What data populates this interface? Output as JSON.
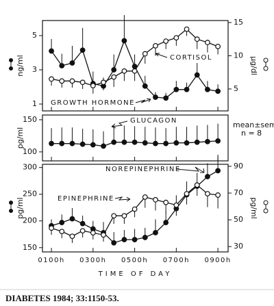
{
  "chart_data": [
    {
      "type": "line",
      "ylabel": "ng/ml",
      "y2label": "μg/dl",
      "x": [
        1,
        1.5,
        2,
        2.5,
        3,
        3.5,
        4,
        4.5,
        5,
        5.5,
        6,
        6.5,
        7,
        7.5,
        8,
        8.5,
        9
      ],
      "xlim": [
        0.57,
        9.49
      ],
      "ylim": [
        0.6,
        5.88
      ],
      "yticks": [
        1,
        3,
        5
      ],
      "y2lim": [
        1.7,
        15.3
      ],
      "y2ticks": [
        5,
        10,
        15
      ],
      "series": [
        {
          "name": "GROWTH HORMONE",
          "color": "#111111",
          "marker": "filled",
          "error_side": "up",
          "values": [
            4.1,
            3.24,
            3.4,
            4.15,
            2.2,
            2.05,
            3.0,
            4.7,
            3.2,
            2.05,
            1.4,
            1.35,
            1.85,
            1.85,
            2.7,
            1.85,
            1.75
          ],
          "errors": [
            0.7,
            0.7,
            1.0,
            1.3,
            0.7,
            0.5,
            0.9,
            1.5,
            0.7,
            0.6,
            0.3,
            0.3,
            0.5,
            0.4,
            0.7,
            0.5,
            0.4
          ]
        },
        {
          "name": "CORTISOL",
          "color": "#111111",
          "marker": "open",
          "error_side": "down",
          "axis": "y2",
          "values": [
            6.5,
            6.2,
            6.2,
            6.0,
            5.5,
            6.0,
            6.8,
            7.7,
            7.7,
            10.3,
            11.5,
            12.2,
            12.7,
            14.0,
            12.5,
            12.0,
            11.4
          ],
          "errors": [
            1.0,
            1.0,
            1.0,
            1.0,
            1.2,
            1.2,
            1.5,
            1.5,
            1.5,
            1.5,
            1.5,
            1.2,
            1.2,
            1.0,
            1.5,
            1.5,
            1.2
          ]
        }
      ]
    },
    {
      "type": "line",
      "ylabel": "pg/ml",
      "x": [
        1,
        1.5,
        2,
        2.5,
        3,
        3.5,
        4,
        4.5,
        5,
        5.5,
        6,
        6.5,
        7,
        7.5,
        8,
        8.5,
        9
      ],
      "xlim": [
        0.57,
        9.49
      ],
      "ylim": [
        86,
        157.4
      ],
      "yticks": [
        100,
        150
      ],
      "annotations": [
        "mean±sem",
        "n = 8"
      ],
      "series": [
        {
          "name": "GLUCAGON",
          "color": "#111111",
          "marker": "filled",
          "error_side": "up",
          "values": [
            113,
            113,
            113,
            112,
            111,
            109,
            115,
            115,
            115,
            114,
            113,
            113,
            114,
            114,
            115,
            116,
            117
          ],
          "errors": [
            24,
            25,
            25,
            24,
            24,
            23,
            26,
            26,
            25,
            25,
            25,
            24,
            25,
            25,
            26,
            26,
            27
          ]
        }
      ]
    },
    {
      "type": "line",
      "ylabel": "pg/ml",
      "y2label": "pg/ml",
      "xlabel": "TIME OF DAY",
      "x": [
        1,
        1.5,
        2,
        2.5,
        3,
        3.5,
        4,
        4.5,
        5,
        5.5,
        6,
        6.5,
        7,
        7.5,
        8,
        8.5,
        9
      ],
      "xlim": [
        0.57,
        9.49
      ],
      "ylim": [
        142,
        306
      ],
      "yticks": [
        150,
        200,
        250,
        300
      ],
      "y2lim": [
        26,
        91.5
      ],
      "y2ticks": [
        30,
        50,
        70,
        90
      ],
      "xticks": [
        {
          "value": 1,
          "label": "0100h"
        },
        {
          "value": 3,
          "label": "0300h"
        },
        {
          "value": 5,
          "label": "0500h"
        },
        {
          "value": 7,
          "label": "0700h"
        },
        {
          "value": 9,
          "label": "0900h"
        }
      ],
      "series": [
        {
          "name": "NOREPINEPHRINE",
          "color": "#111111",
          "marker": "filled",
          "error_side": "up",
          "values": [
            191,
            197,
            204,
            195,
            185,
            178,
            159,
            165,
            165,
            169,
            178,
            197,
            223,
            249,
            265,
            283,
            294
          ],
          "errors": [
            12,
            15,
            20,
            15,
            15,
            20,
            20,
            18,
            20,
            18,
            25,
            20,
            25,
            25,
            25,
            25,
            30
          ]
        },
        {
          "name": "EPINEPHRINE",
          "color": "#111111",
          "marker": "open",
          "error_side": "down",
          "axis": "y2",
          "values": [
            43.8,
            41.3,
            37.7,
            41.8,
            40.3,
            38.7,
            53,
            53,
            58,
            67,
            65,
            63,
            61,
            69.5,
            76,
            69.5,
            68.5
          ],
          "errors": [
            5,
            5,
            5,
            5,
            5,
            5,
            6,
            6,
            6,
            8,
            8,
            8,
            8,
            8,
            8,
            10,
            10
          ]
        }
      ]
    }
  ],
  "caption": "DIABETES 1984; 33:1150-53."
}
